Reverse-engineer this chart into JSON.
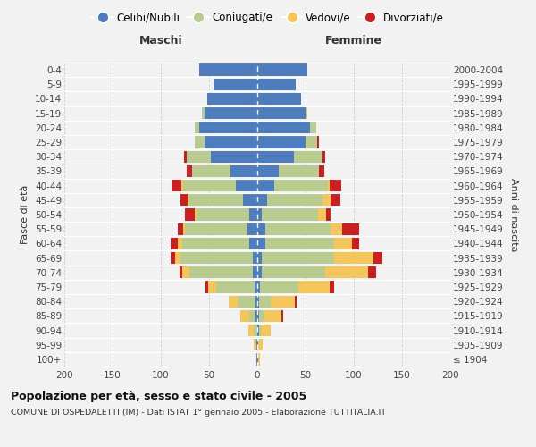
{
  "age_groups": [
    "100+",
    "95-99",
    "90-94",
    "85-89",
    "80-84",
    "75-79",
    "70-74",
    "65-69",
    "60-64",
    "55-59",
    "50-54",
    "45-49",
    "40-44",
    "35-39",
    "30-34",
    "25-29",
    "20-24",
    "15-19",
    "10-14",
    "5-9",
    "0-4"
  ],
  "birth_years": [
    "≤ 1904",
    "1905-1909",
    "1910-1914",
    "1915-1919",
    "1920-1924",
    "1925-1929",
    "1930-1934",
    "1935-1939",
    "1940-1944",
    "1945-1949",
    "1950-1954",
    "1955-1959",
    "1960-1964",
    "1965-1969",
    "1970-1974",
    "1975-1979",
    "1980-1984",
    "1985-1989",
    "1990-1994",
    "1995-1999",
    "2000-2004"
  ],
  "colors": {
    "celibi": "#4d7cbf",
    "coniugati": "#b8cc90",
    "vedovi": "#f5c75a",
    "divorziati": "#cc2020"
  },
  "male_celibi": [
    1,
    1,
    0,
    2,
    2,
    3,
    5,
    5,
    8,
    10,
    8,
    15,
    22,
    28,
    48,
    55,
    60,
    55,
    52,
    45,
    60
  ],
  "male_coniugati": [
    0,
    1,
    4,
    6,
    18,
    40,
    65,
    75,
    70,
    65,
    55,
    55,
    55,
    40,
    25,
    10,
    5,
    2,
    0,
    0,
    0
  ],
  "male_vedovi": [
    0,
    2,
    5,
    10,
    10,
    8,
    8,
    5,
    4,
    2,
    2,
    2,
    2,
    0,
    0,
    0,
    0,
    0,
    0,
    0,
    0
  ],
  "male_divorziati": [
    0,
    0,
    0,
    0,
    0,
    3,
    3,
    5,
    8,
    5,
    10,
    8,
    10,
    5,
    3,
    0,
    0,
    0,
    0,
    0,
    0
  ],
  "female_nubili": [
    1,
    1,
    2,
    2,
    2,
    3,
    5,
    5,
    8,
    8,
    5,
    10,
    18,
    22,
    38,
    50,
    55,
    50,
    45,
    40,
    52
  ],
  "female_coniugati": [
    0,
    0,
    2,
    5,
    12,
    40,
    65,
    75,
    72,
    68,
    58,
    58,
    55,
    42,
    30,
    12,
    6,
    2,
    0,
    0,
    0
  ],
  "female_vedovi": [
    2,
    5,
    10,
    18,
    25,
    32,
    45,
    40,
    18,
    12,
    8,
    8,
    2,
    0,
    0,
    0,
    0,
    0,
    0,
    0,
    0
  ],
  "female_divorziati": [
    0,
    0,
    0,
    2,
    2,
    5,
    8,
    10,
    8,
    18,
    5,
    10,
    12,
    5,
    2,
    2,
    0,
    0,
    0,
    0,
    0
  ],
  "title": "Popolazione per età, sesso e stato civile - 2005",
  "subtitle": "COMUNE DI OSPEDALETTI (IM) - Dati ISTAT 1° gennaio 2005 - Elaborazione TUTTITALIA.IT",
  "legend_labels": [
    "Celibi/Nubili",
    "Coniugati/e",
    "Vedovi/e",
    "Divorziati/e"
  ],
  "xlim": 200,
  "bg_color": "#f2f2f2",
  "bar_height": 0.82
}
